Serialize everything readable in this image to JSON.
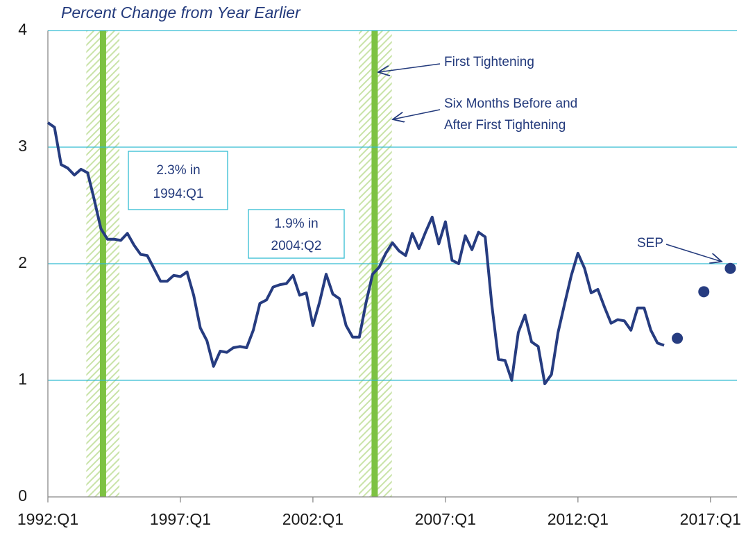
{
  "chart_data": {
    "type": "line",
    "title": "Percent Change from Year Earlier",
    "x": [
      1992,
      1992.25,
      1992.5,
      1992.75,
      1993,
      1993.25,
      1993.5,
      1993.75,
      1994,
      1994.25,
      1994.5,
      1994.75,
      1995,
      1995.25,
      1995.5,
      1995.75,
      1996,
      1996.25,
      1996.5,
      1996.75,
      1997,
      1997.25,
      1997.5,
      1997.75,
      1998,
      1998.25,
      1998.5,
      1998.75,
      1999,
      1999.25,
      1999.5,
      1999.75,
      2000,
      2000.25,
      2000.5,
      2000.75,
      2001,
      2001.25,
      2001.5,
      2001.75,
      2002,
      2002.25,
      2002.5,
      2002.75,
      2003,
      2003.25,
      2003.5,
      2003.75,
      2004,
      2004.25,
      2004.5,
      2004.75,
      2005,
      2005.25,
      2005.5,
      2005.75,
      2006,
      2006.25,
      2006.5,
      2006.75,
      2007,
      2007.25,
      2007.5,
      2007.75,
      2008,
      2008.25,
      2008.5,
      2008.75,
      2009,
      2009.25,
      2009.5,
      2009.75,
      2010,
      2010.25,
      2010.5,
      2010.75,
      2011,
      2011.25,
      2011.5,
      2011.75,
      2012,
      2012.25,
      2012.5,
      2012.75,
      2013,
      2013.25,
      2013.5,
      2013.75,
      2014,
      2014.25,
      2014.5,
      2014.75,
      2015,
      2015.25
    ],
    "values": [
      3.21,
      3.17,
      2.85,
      2.82,
      2.76,
      2.81,
      2.78,
      2.55,
      2.3,
      2.21,
      2.21,
      2.2,
      2.26,
      2.16,
      2.08,
      2.07,
      1.96,
      1.85,
      1.85,
      1.9,
      1.89,
      1.93,
      1.73,
      1.45,
      1.34,
      1.12,
      1.25,
      1.24,
      1.28,
      1.29,
      1.28,
      1.43,
      1.66,
      1.69,
      1.8,
      1.82,
      1.83,
      1.9,
      1.73,
      1.75,
      1.47,
      1.67,
      1.91,
      1.74,
      1.7,
      1.47,
      1.37,
      1.37,
      1.66,
      1.91,
      1.97,
      2.09,
      2.18,
      2.11,
      2.07,
      2.26,
      2.13,
      2.27,
      2.4,
      2.17,
      2.36,
      2.03,
      2.0,
      2.24,
      2.12,
      2.27,
      2.23,
      1.65,
      1.18,
      1.17,
      1.0,
      1.41,
      1.56,
      1.33,
      1.29,
      0.97,
      1.05,
      1.41,
      1.66,
      1.9,
      2.09,
      1.96,
      1.75,
      1.78,
      1.63,
      1.49,
      1.52,
      1.51,
      1.43,
      1.62,
      1.62,
      1.43,
      1.32,
      1.3
    ],
    "color": "#263c80",
    "projections": {
      "x": [
        2015.75,
        2016.75,
        2017.75
      ],
      "values": [
        1.36,
        1.76,
        1.96
      ],
      "color": "#263c80"
    },
    "bands": [
      {
        "line": 1994.08,
        "start": 1993.45,
        "end": 1994.7
      },
      {
        "line": 2004.33,
        "start": 2003.73,
        "end": 2004.98
      }
    ],
    "band_color": "#7dc242",
    "xlim": [
      1992,
      2018
    ],
    "xticks": [
      {
        "value": 1992,
        "label": "1992:Q1"
      },
      {
        "value": 1997,
        "label": "1997:Q1"
      },
      {
        "value": 2002,
        "label": "2002:Q1"
      },
      {
        "value": 2007,
        "label": "2007:Q1"
      },
      {
        "value": 2012,
        "label": "2012:Q1"
      },
      {
        "value": 2017,
        "label": "2017:Q1"
      }
    ],
    "ylim": [
      0,
      4
    ],
    "yticks": [
      0,
      1,
      2,
      3,
      4
    ],
    "grid": true,
    "grid_color": "#33bcd2",
    "annotations": [
      {
        "lines": [
          "First Tightening"
        ]
      },
      {
        "lines": [
          "Six Months Before and",
          "After First Tightening"
        ]
      },
      {
        "lines": [
          "2.3% in",
          "1994:Q1"
        ]
      },
      {
        "lines": [
          "1.9% in",
          "2004:Q2"
        ]
      },
      {
        "lines": [
          "SEP"
        ]
      }
    ]
  }
}
